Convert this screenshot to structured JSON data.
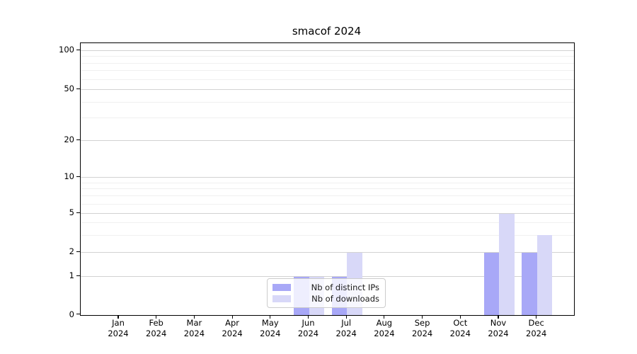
{
  "chart_data": {
    "type": "bar",
    "title": "smacof 2024",
    "categories": [
      "Jan 2024",
      "Feb 2024",
      "Mar 2024",
      "Apr 2024",
      "May 2024",
      "Jun 2024",
      "Jul 2024",
      "Aug 2024",
      "Sep 2024",
      "Oct 2024",
      "Nov 2024",
      "Dec 2024"
    ],
    "series": [
      {
        "name": "Nb of distinct IPs",
        "color": "#a8a8f7",
        "values": [
          0,
          0,
          0,
          0,
          0,
          1,
          1,
          0,
          0,
          0,
          2,
          2
        ]
      },
      {
        "name": "Nb of downloads",
        "color": "#d8d8f8",
        "values": [
          0,
          0,
          0,
          0,
          0,
          1,
          2,
          0,
          0,
          0,
          5,
          3
        ]
      }
    ],
    "xlabel": "",
    "ylabel": "",
    "ylim": [
      0,
      100
    ],
    "yscale": "log-like (0,1,2,5,10,20,50,100)",
    "yticks": [
      0,
      1,
      2,
      5,
      10,
      20,
      50,
      100
    ],
    "minor_yticks": [
      3,
      4,
      6,
      7,
      8,
      9,
      30,
      40,
      60,
      70,
      80,
      90
    ],
    "grid": true,
    "legend_position": "lower center"
  },
  "colors": {
    "major_grid": "#d2d2d2",
    "minor_grid": "#f0f0f0",
    "spine": "#000000",
    "legend_border": "#cccccc",
    "text": "#000000"
  }
}
